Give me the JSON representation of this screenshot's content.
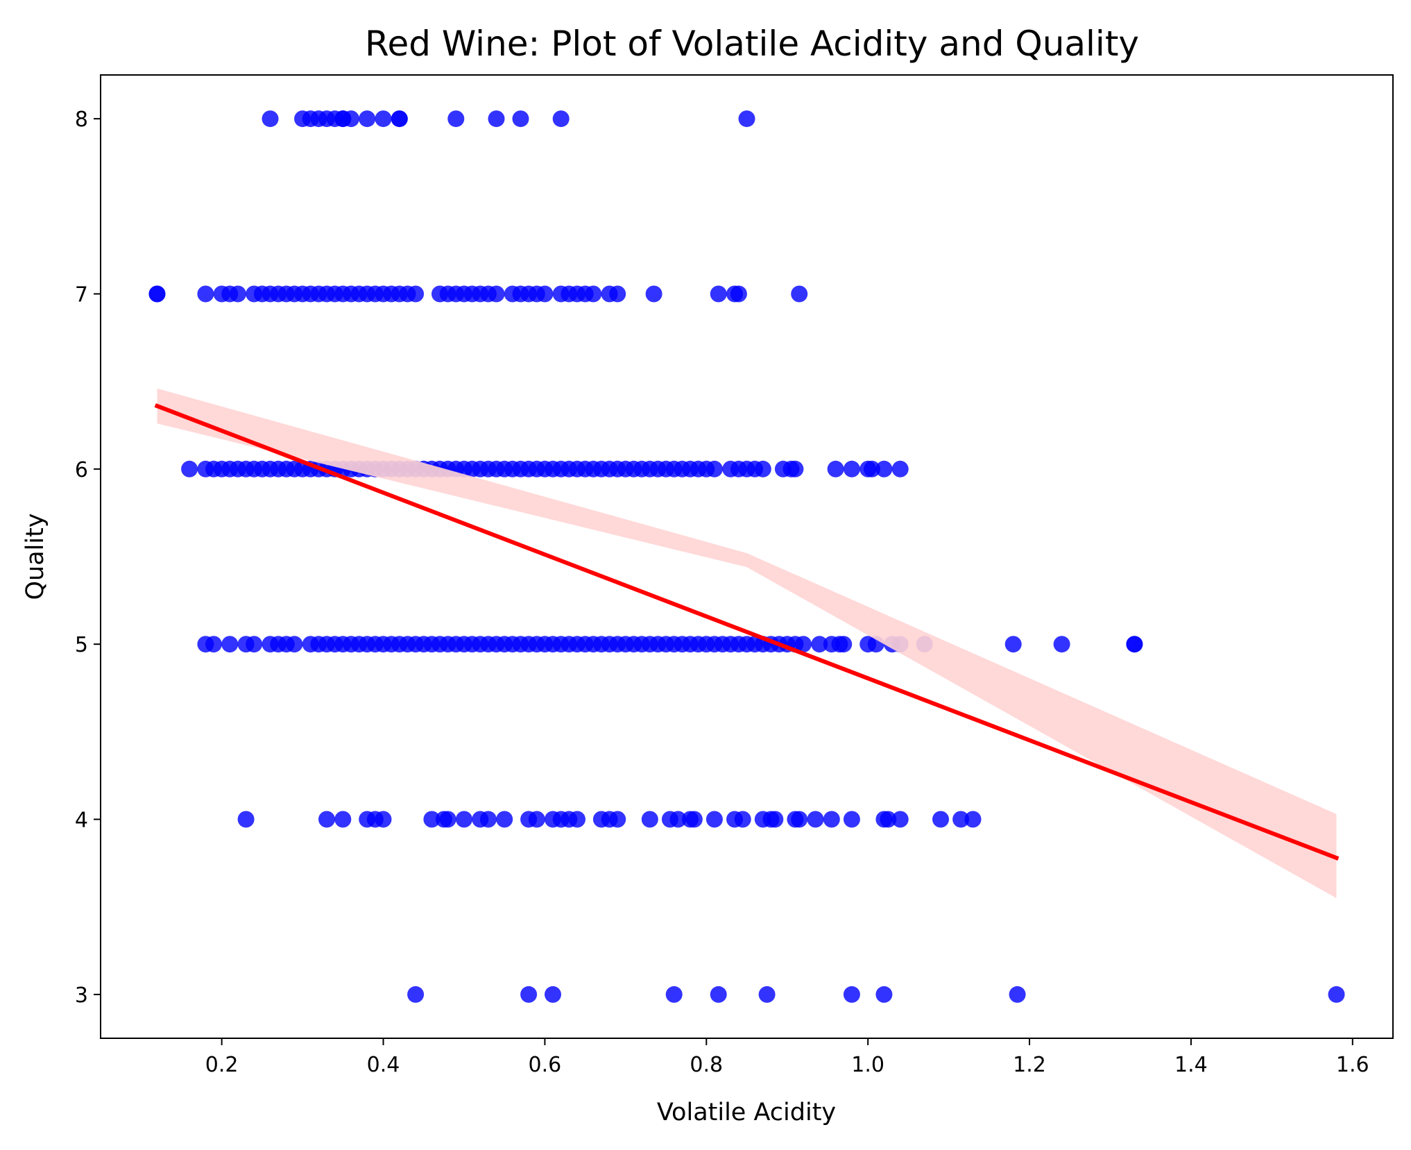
{
  "chart_data": {
    "type": "scatter",
    "title": "Red Wine: Plot of Volatile Acidity and Quality",
    "xlabel": "Volatile Acidity",
    "ylabel": "Quality",
    "xlim": [
      0.05,
      1.65
    ],
    "ylim": [
      2.75,
      8.25
    ],
    "x_ticks": [
      0.2,
      0.4,
      0.6,
      0.8,
      1.0,
      1.2,
      1.4,
      1.6
    ],
    "x_tick_labels": [
      "0.2",
      "0.4",
      "0.6",
      "0.8",
      "1.0",
      "1.2",
      "1.4",
      "1.6"
    ],
    "y_ticks": [
      3,
      4,
      5,
      6,
      7,
      8
    ],
    "y_tick_labels": [
      "3",
      "4",
      "5",
      "6",
      "7",
      "8"
    ],
    "grid": false,
    "colors": {
      "points": "#0000ff",
      "fit_line": "#ff0000",
      "confidence_band": "#ffd4d4"
    },
    "regression": {
      "x": [
        0.12,
        1.58
      ],
      "y": [
        6.36,
        3.78
      ],
      "band_lower_start": 6.26,
      "band_upper_start": 6.46,
      "band_lower_mid": 5.44,
      "band_upper_mid": 5.52,
      "band_lower_end": 3.55,
      "band_upper_end": 4.03
    },
    "series": [
      {
        "quality": 8,
        "x": [
          0.26,
          0.3,
          0.31,
          0.32,
          0.33,
          0.34,
          0.35,
          0.35,
          0.36,
          0.38,
          0.4,
          0.42,
          0.42,
          0.49,
          0.54,
          0.57,
          0.62,
          0.85
        ]
      },
      {
        "quality": 7,
        "x": [
          0.12,
          0.12,
          0.18,
          0.2,
          0.21,
          0.22,
          0.24,
          0.25,
          0.26,
          0.27,
          0.28,
          0.29,
          0.3,
          0.31,
          0.32,
          0.33,
          0.34,
          0.35,
          0.36,
          0.37,
          0.38,
          0.39,
          0.4,
          0.41,
          0.42,
          0.43,
          0.44,
          0.47,
          0.48,
          0.49,
          0.5,
          0.51,
          0.52,
          0.53,
          0.54,
          0.56,
          0.57,
          0.58,
          0.59,
          0.6,
          0.62,
          0.63,
          0.64,
          0.65,
          0.66,
          0.68,
          0.69,
          0.735,
          0.815,
          0.835,
          0.84,
          0.915
        ]
      },
      {
        "quality": 6,
        "x": [
          0.16,
          0.18,
          0.19,
          0.2,
          0.21,
          0.22,
          0.23,
          0.24,
          0.25,
          0.26,
          0.27,
          0.28,
          0.29,
          0.3,
          0.31,
          0.32,
          0.33,
          0.34,
          0.35,
          0.36,
          0.37,
          0.38,
          0.39,
          0.4,
          0.41,
          0.42,
          0.43,
          0.44,
          0.45,
          0.46,
          0.47,
          0.48,
          0.49,
          0.5,
          0.51,
          0.52,
          0.53,
          0.54,
          0.55,
          0.56,
          0.57,
          0.58,
          0.59,
          0.6,
          0.61,
          0.62,
          0.63,
          0.64,
          0.65,
          0.66,
          0.67,
          0.68,
          0.69,
          0.7,
          0.71,
          0.72,
          0.73,
          0.74,
          0.75,
          0.76,
          0.77,
          0.78,
          0.79,
          0.8,
          0.81,
          0.83,
          0.84,
          0.85,
          0.86,
          0.87,
          0.895,
          0.905,
          0.91,
          0.96,
          0.98,
          1.0,
          1.005,
          1.02,
          1.04
        ]
      },
      {
        "quality": 5,
        "x": [
          0.18,
          0.19,
          0.21,
          0.23,
          0.24,
          0.26,
          0.27,
          0.28,
          0.29,
          0.31,
          0.32,
          0.33,
          0.34,
          0.35,
          0.36,
          0.37,
          0.38,
          0.39,
          0.4,
          0.41,
          0.42,
          0.43,
          0.44,
          0.45,
          0.46,
          0.47,
          0.48,
          0.49,
          0.5,
          0.51,
          0.52,
          0.53,
          0.54,
          0.55,
          0.56,
          0.57,
          0.58,
          0.59,
          0.6,
          0.61,
          0.62,
          0.63,
          0.64,
          0.65,
          0.66,
          0.67,
          0.68,
          0.69,
          0.7,
          0.71,
          0.72,
          0.73,
          0.74,
          0.75,
          0.76,
          0.77,
          0.78,
          0.79,
          0.8,
          0.81,
          0.82,
          0.83,
          0.84,
          0.85,
          0.86,
          0.87,
          0.88,
          0.89,
          0.9,
          0.91,
          0.92,
          0.94,
          0.955,
          0.965,
          0.97,
          1.0,
          1.01,
          1.03,
          1.04,
          1.07,
          1.18,
          1.24,
          1.33,
          1.33
        ]
      },
      {
        "quality": 4,
        "x": [
          0.23,
          0.33,
          0.35,
          0.38,
          0.39,
          0.4,
          0.46,
          0.475,
          0.48,
          0.5,
          0.52,
          0.53,
          0.55,
          0.58,
          0.59,
          0.61,
          0.62,
          0.63,
          0.64,
          0.67,
          0.68,
          0.69,
          0.73,
          0.755,
          0.765,
          0.78,
          0.785,
          0.81,
          0.835,
          0.845,
          0.87,
          0.88,
          0.885,
          0.91,
          0.915,
          0.935,
          0.955,
          0.98,
          1.02,
          1.025,
          1.04,
          1.09,
          1.115,
          1.13
        ]
      },
      {
        "quality": 3,
        "x": [
          0.44,
          0.58,
          0.61,
          0.76,
          0.815,
          0.875,
          0.98,
          1.02,
          1.185,
          1.58
        ]
      }
    ]
  }
}
